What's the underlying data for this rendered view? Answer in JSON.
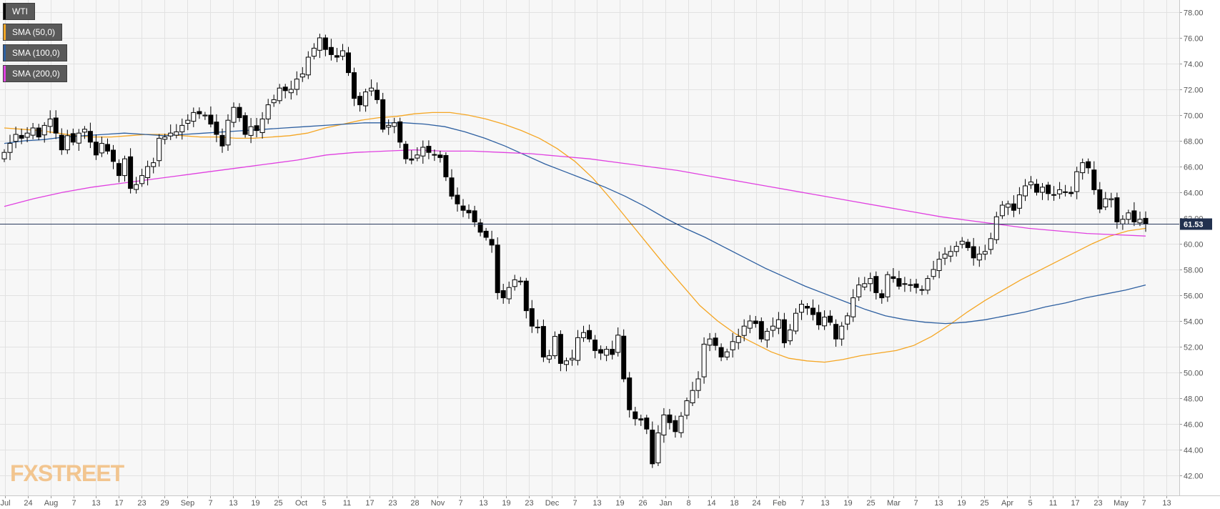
{
  "chart_data": {
    "type": "candlestick",
    "title": "",
    "ylim": [
      41,
      79
    ],
    "y_ticks": [
      "42.00",
      "44.00",
      "46.00",
      "48.00",
      "50.00",
      "52.00",
      "54.00",
      "56.00",
      "58.00",
      "60.00",
      "62.00",
      "64.00",
      "66.00",
      "68.00",
      "70.00",
      "72.00",
      "74.00",
      "76.00",
      "78.00"
    ],
    "x_ticks": [
      "Jul",
      "24",
      "Aug",
      "7",
      "13",
      "17",
      "23",
      "29",
      "Sep",
      "7",
      "13",
      "19",
      "25",
      "Oct",
      "5",
      "11",
      "17",
      "23",
      "28",
      "Nov",
      "7",
      "13",
      "19",
      "23",
      "Dec",
      "7",
      "13",
      "19",
      "26",
      "Jan",
      "8",
      "14",
      "18",
      "24",
      "Feb",
      "7",
      "13",
      "19",
      "25",
      "Mar",
      "7",
      "13",
      "19",
      "25",
      "Apr",
      "5",
      "11",
      "17",
      "23",
      "May",
      "7",
      "13"
    ],
    "last_price": 61.53,
    "last_price_label": "61.53",
    "grid": true,
    "legend": {
      "position": "top-left"
    },
    "series": [
      {
        "name": "WTI",
        "type": "candlestick",
        "color": "#000000",
        "values": [
          67.1,
          67.8,
          68.5,
          68.2,
          68.6,
          69.0,
          68.3,
          69.2,
          69.7,
          68.6,
          67.3,
          68.4,
          67.9,
          68.6,
          68.9,
          67.9,
          66.9,
          67.8,
          67.2,
          66.4,
          65.3,
          66.6,
          64.3,
          64.6,
          65.3,
          66.0,
          66.3,
          68.2,
          68.3,
          68.6,
          68.7,
          69.2,
          69.6,
          70.2,
          70.1,
          70.0,
          69.3,
          68.5,
          67.6,
          69.6,
          70.6,
          69.8,
          68.5,
          69.1,
          68.8,
          69.7,
          70.8,
          71.2,
          72.1,
          71.9,
          72.0,
          72.8,
          73.2,
          74.5,
          75.2,
          76.0,
          75.1,
          74.7,
          74.5,
          75.0,
          73.3,
          71.3,
          70.8,
          71.8,
          72.1,
          71.2,
          68.9,
          69.2,
          69.4,
          67.9,
          66.6,
          66.5,
          66.9,
          67.5,
          67.1,
          66.9,
          66.7,
          65.2,
          63.7,
          63.1,
          62.6,
          62.4,
          61.7,
          60.9,
          60.5,
          59.9,
          56.2,
          55.8,
          56.6,
          57.2,
          57.1,
          54.8,
          53.6,
          53.5,
          51.2,
          51.3,
          52.8,
          50.7,
          50.9,
          51.1,
          52.7,
          53.1,
          52.6,
          51.7,
          51.5,
          51.8,
          51.4,
          52.9,
          49.5,
          47.1,
          46.4,
          46.3,
          45.6,
          42.9,
          45.3,
          46.7,
          46.1,
          45.4,
          46.6,
          47.8,
          48.6,
          49.5,
          52.2,
          52.6,
          52.1,
          51.2,
          51.6,
          52.4,
          52.8,
          53.6,
          54.0,
          53.8,
          52.6,
          53.2,
          53.6,
          54.1,
          52.3,
          53.3,
          54.6,
          55.3,
          55.0,
          54.5,
          53.7,
          54.3,
          53.9,
          52.6,
          53.6,
          54.4,
          55.8,
          56.8,
          56.9,
          57.3,
          56.2,
          55.8,
          57.6,
          57.3,
          56.7,
          56.9,
          56.8,
          56.6,
          56.4,
          57.3,
          58.0,
          58.8,
          59.2,
          59.4,
          59.8,
          60.2,
          59.7,
          58.9,
          59.2,
          59.4,
          60.4,
          62.1,
          63.0,
          63.1,
          62.6,
          63.8,
          64.5,
          64.8,
          64.0,
          64.4,
          63.9,
          63.8,
          64.2,
          64.0,
          63.9,
          65.6,
          66.3,
          65.9,
          64.2,
          62.7,
          63.5,
          63.5,
          61.7,
          61.9,
          62.4,
          61.7,
          61.9,
          61.53
        ]
      },
      {
        "name": "SMA (50,0)",
        "type": "line",
        "color": "#f5a623",
        "values": [
          69.0,
          68.9,
          68.8,
          68.6,
          68.4,
          68.3,
          68.3,
          68.4,
          68.5,
          68.5,
          68.4,
          68.3,
          68.3,
          68.2,
          68.2,
          68.3,
          68.4,
          68.6,
          69.0,
          69.3,
          69.6,
          69.8,
          69.9,
          70.1,
          70.2,
          70.2,
          70.0,
          69.7,
          69.3,
          68.8,
          68.2,
          67.4,
          66.4,
          65.1,
          63.5,
          61.8,
          60.1,
          58.4,
          56.8,
          55.2,
          54.0,
          53.0,
          52.3,
          51.6,
          51.1,
          50.9,
          50.8,
          51.0,
          51.3,
          51.5,
          51.7,
          52.1,
          52.8,
          53.7,
          54.7,
          55.6,
          56.4,
          57.2,
          57.9,
          58.6,
          59.3,
          60.0,
          60.6,
          61.0,
          61.2
        ]
      },
      {
        "name": "SMA (100,0)",
        "type": "line",
        "color": "#2d5fa0",
        "values": [
          67.8,
          68.0,
          68.1,
          68.3,
          68.4,
          68.5,
          68.6,
          68.5,
          68.4,
          68.5,
          68.6,
          68.7,
          68.8,
          68.9,
          69.0,
          69.1,
          69.2,
          69.3,
          69.4,
          69.4,
          69.4,
          69.3,
          69.1,
          68.7,
          68.2,
          67.6,
          66.9,
          66.2,
          65.6,
          65.0,
          64.4,
          63.7,
          62.9,
          62.0,
          61.2,
          60.5,
          59.7,
          58.9,
          58.1,
          57.4,
          56.7,
          56.1,
          55.5,
          54.9,
          54.4,
          54.1,
          53.9,
          53.8,
          53.9,
          54.1,
          54.4,
          54.7,
          55.1,
          55.4,
          55.8,
          56.1,
          56.4,
          56.8
        ]
      },
      {
        "name": "SMA (200,0)",
        "type": "line",
        "color": "#e040e0",
        "values": [
          62.9,
          63.5,
          64.0,
          64.4,
          64.7,
          65.0,
          65.3,
          65.6,
          65.9,
          66.2,
          66.5,
          66.9,
          67.1,
          67.2,
          67.3,
          67.2,
          67.2,
          67.1,
          67.0,
          66.8,
          66.6,
          66.3,
          66.0,
          65.7,
          65.3,
          64.9,
          64.5,
          64.1,
          63.7,
          63.3,
          62.9,
          62.5,
          62.1,
          61.8,
          61.5,
          61.2,
          61.0,
          60.8,
          60.7,
          60.6
        ]
      }
    ]
  },
  "watermark": "FXSTREET"
}
